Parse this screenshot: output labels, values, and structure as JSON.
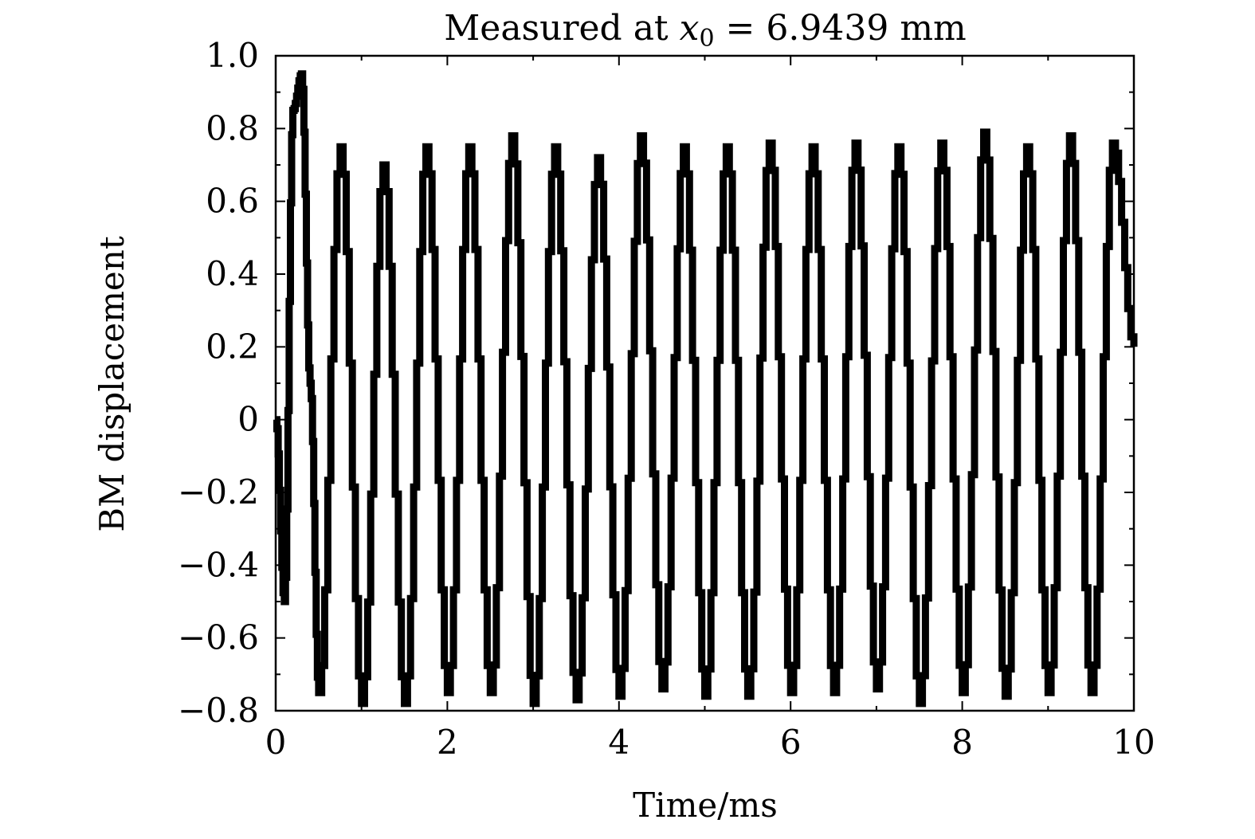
{
  "chart_data": {
    "type": "line",
    "title_prefix": "Measured at ",
    "title_var": "x",
    "title_sub": "0",
    "title_suffix": " = 6.9439 mm",
    "xlabel": "Time/ms",
    "ylabel": "BM displacement",
    "xlim": [
      0,
      10
    ],
    "ylim": [
      -0.8,
      1.0
    ],
    "xticks": [
      0,
      2,
      4,
      6,
      8,
      10
    ],
    "xtick_labels": [
      "0",
      "2",
      "4",
      "6",
      "8",
      "10"
    ],
    "yticks": [
      1.0,
      0.8,
      0.6,
      0.4,
      0.2,
      0,
      -0.2,
      -0.4,
      -0.6,
      -0.8
    ],
    "ytick_labels": [
      "1.0",
      "0.8",
      "0.6",
      "0.4",
      "0.2",
      "0",
      "−0.2",
      "−0.4",
      "−0.6",
      "−0.8"
    ],
    "grid": false,
    "series_color": "#000000",
    "series": [
      {
        "x": [
          0,
          0.1,
          0.2,
          0.3,
          0.4,
          0.5,
          0.75,
          1.0,
          1.25,
          1.5,
          1.75,
          2.0,
          2.25,
          2.5,
          2.75,
          3.0,
          3.25,
          3.5,
          3.75,
          4.0,
          4.25,
          4.5,
          4.75,
          5.0,
          5.25,
          5.5,
          5.75,
          6.0,
          6.25,
          6.5,
          6.75,
          7.0,
          7.25,
          7.5,
          7.75,
          8.0,
          8.25,
          8.5,
          8.75,
          9.0,
          9.25,
          9.5,
          9.75,
          10.0
        ],
        "y": [
          0.0,
          -0.5,
          0.85,
          0.95,
          0.1,
          -0.75,
          0.75,
          -0.78,
          0.7,
          -0.78,
          0.75,
          -0.75,
          0.75,
          -0.75,
          0.78,
          -0.78,
          0.75,
          -0.77,
          0.72,
          -0.76,
          0.78,
          -0.74,
          0.75,
          -0.76,
          0.75,
          -0.76,
          0.76,
          -0.75,
          0.75,
          -0.75,
          0.76,
          -0.74,
          0.75,
          -0.78,
          0.76,
          -0.75,
          0.79,
          -0.76,
          0.75,
          -0.75,
          0.78,
          -0.75,
          0.76,
          0.2
        ]
      }
    ]
  }
}
